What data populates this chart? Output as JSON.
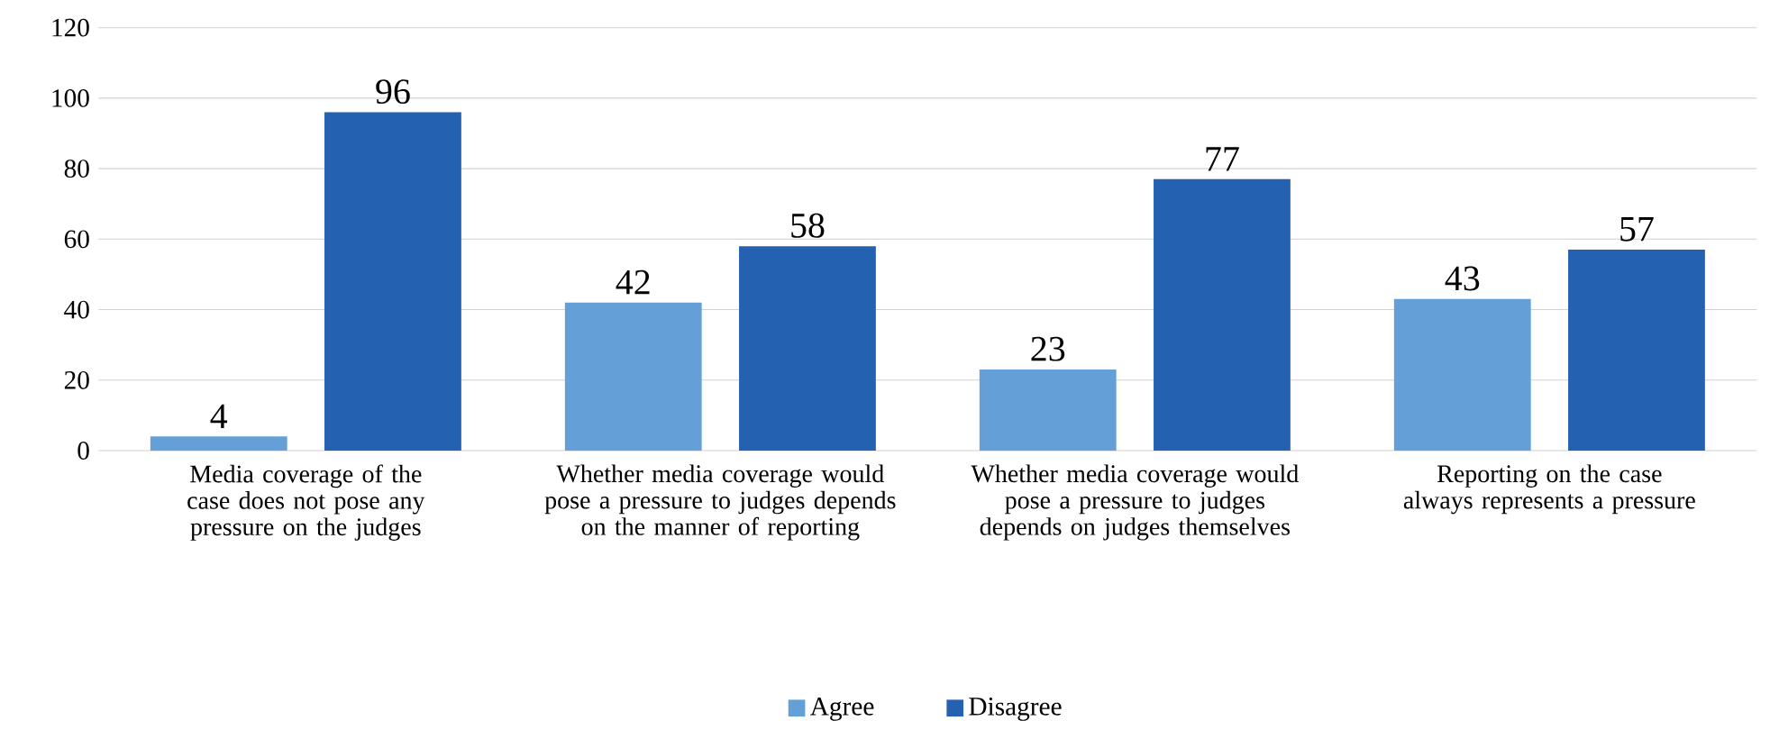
{
  "chart_data": {
    "type": "bar",
    "categories": [
      "Media coverage of the case does not pose any pressure on the judges",
      "Whether media coverage would pose a pressure to judges depends on the manner of reporting",
      "Whether media coverage would pose a pressure to judges depends on judges themselves",
      "Reporting on the case always represents a pressure"
    ],
    "series": [
      {
        "name": "Agree",
        "color": "#659fd7",
        "values": [
          4,
          42,
          23,
          43
        ]
      },
      {
        "name": "Disagree",
        "color": "#2561b1",
        "values": [
          96,
          58,
          77,
          57
        ]
      }
    ],
    "ylim": [
      0,
      120
    ],
    "yticks": [
      0,
      20,
      40,
      60,
      80,
      100,
      120
    ],
    "grid": "y",
    "legend": "bottom",
    "data_labels": true
  }
}
